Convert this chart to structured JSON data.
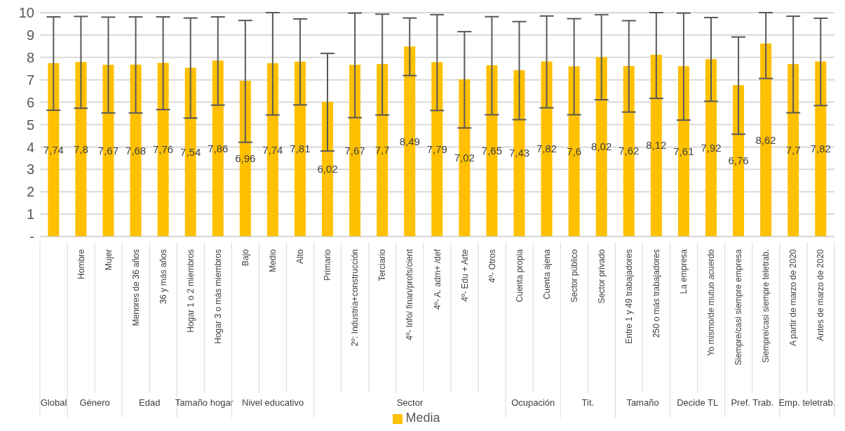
{
  "chart_data": {
    "type": "bar",
    "categories": [
      null,
      "Hombre",
      "Mujer",
      "Menores de 36 años",
      "36 y más años",
      "Hogar 1 o 2 miembros",
      "Hogar 3 o más miembros",
      "Bajo",
      "Medio",
      "Alto",
      "Primario",
      "2º: Industria+construcción",
      "Terciario",
      "4º- Info/ finan/profs/cient",
      "4º- A. adm+ /def",
      "4º- Edu + Arte",
      "4º- Otros",
      "Cuenta propia",
      "Cuenta ajena",
      "Sector público",
      "Sector privado",
      "Entre 1 y 49 trabajadores",
      "250 o más trabajadores",
      "La empresa",
      "Yo mismo/de mutuo acuerdo",
      "Siempre/casi siempre empresa",
      "Siempre/casi siempre teletrab.",
      "A partir de marzo de 2020",
      "Antes de marzo de 2020"
    ],
    "series": [
      {
        "name": "Media",
        "color": "#ffc000",
        "values": [
          7.74,
          7.8,
          7.67,
          7.68,
          7.76,
          7.54,
          7.86,
          6.96,
          7.74,
          7.81,
          6.02,
          7.67,
          7.7,
          8.49,
          7.79,
          7.02,
          7.65,
          7.43,
          7.82,
          7.6,
          8.02,
          7.62,
          8.12,
          7.61,
          7.92,
          6.76,
          8.62,
          7.7,
          7.82
        ],
        "value_labels": [
          "7,74",
          "7,8",
          "7,67",
          "7,68",
          "7,76",
          "7,54",
          "7,86",
          "6,96",
          "7,74",
          "7,81",
          "6,02",
          "7,67",
          "7,7",
          "8,49",
          "7,79",
          "7,02",
          "7,65",
          "7,43",
          "7,82",
          "7,6",
          "8,02",
          "7,62",
          "8,12",
          "7,61",
          "7,92",
          "6,76",
          "8,62",
          "7,7",
          "7,82"
        ],
        "errors": [
          [
            5.64,
            9.81
          ],
          [
            5.73,
            9.83
          ],
          [
            5.52,
            9.8
          ],
          [
            5.52,
            9.81
          ],
          [
            5.67,
            9.81
          ],
          [
            5.29,
            9.76
          ],
          [
            5.87,
            9.81
          ],
          [
            4.21,
            9.65
          ],
          [
            5.43,
            10
          ],
          [
            5.88,
            9.72
          ],
          [
            3.82,
            8.18
          ],
          [
            5.31,
            9.98
          ],
          [
            5.43,
            9.93
          ],
          [
            7.19,
            9.76
          ],
          [
            5.63,
            9.91
          ],
          [
            4.85,
            9.15
          ],
          [
            5.44,
            9.82
          ],
          [
            5.22,
            9.6
          ],
          [
            5.75,
            9.85
          ],
          [
            5.44,
            9.73
          ],
          [
            6.11,
            9.91
          ],
          [
            5.56,
            9.64
          ],
          [
            6.17,
            10
          ],
          [
            5.2,
            9.98
          ],
          [
            6.04,
            9.78
          ],
          [
            4.57,
            8.91
          ],
          [
            7.06,
            10
          ],
          [
            5.53,
            9.84
          ],
          [
            5.85,
            9.75
          ]
        ]
      }
    ],
    "ylim": [
      0,
      10
    ],
    "yticks": [
      {
        "value": 0,
        "label": "-"
      },
      1,
      2,
      3,
      4,
      5,
      6,
      7,
      8,
      9,
      10
    ],
    "grid": "y",
    "legend": "bottom",
    "annotations": [
      "Global",
      "Género",
      "Edad",
      "Tamaño hogar",
      "Nivel educativo",
      "Sector",
      "Ocupación",
      "Tit.",
      "Tamaño",
      "Decide TL",
      "Pref. Trab.",
      "Emp. teletrab."
    ]
  }
}
